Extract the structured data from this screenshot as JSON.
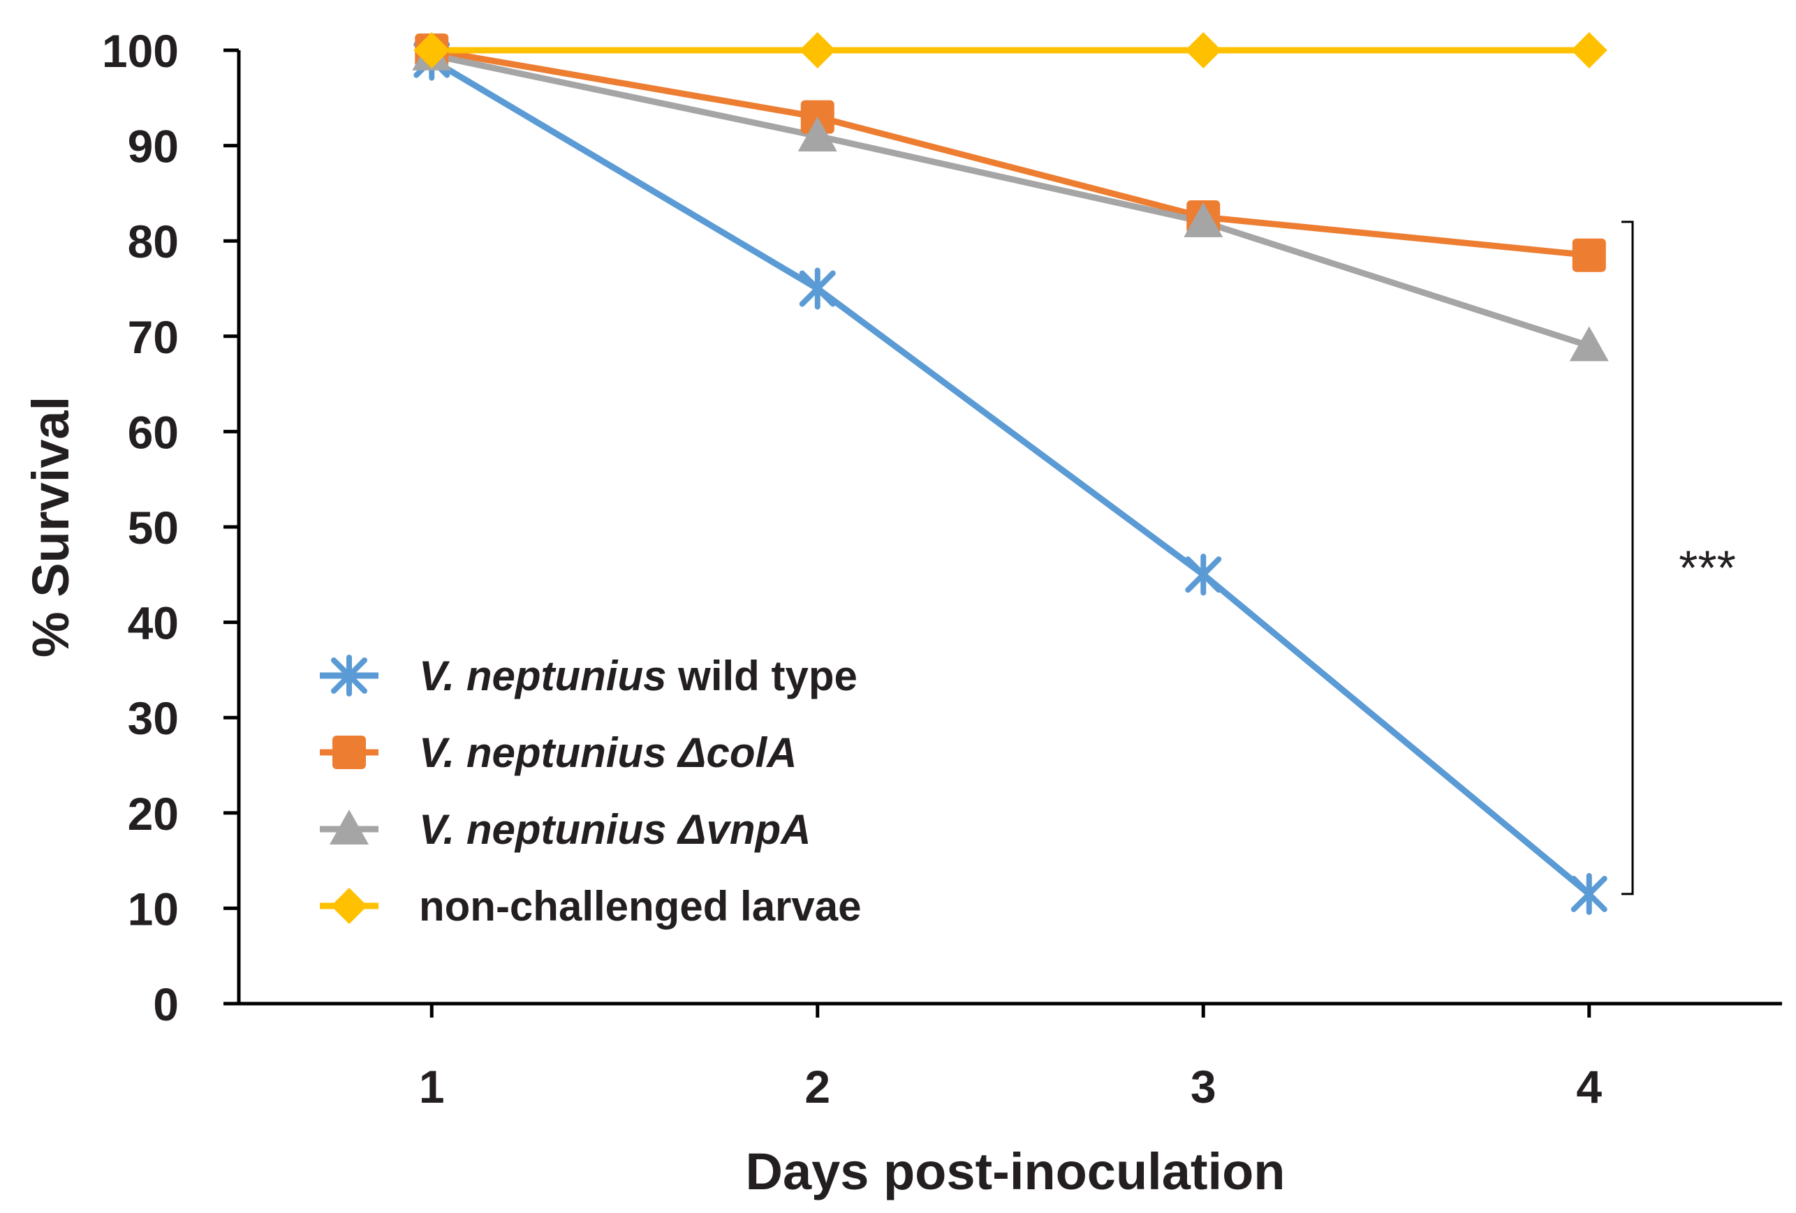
{
  "chart_data": {
    "type": "line",
    "title": "",
    "xlabel": "Days post-inoculation",
    "ylabel": "% Survival",
    "x": [
      1,
      2,
      3,
      4
    ],
    "xlim": [
      0.5,
      4.5
    ],
    "ylim": [
      0,
      100
    ],
    "yticks": [
      0,
      10,
      20,
      30,
      40,
      50,
      60,
      70,
      80,
      90,
      100
    ],
    "xticks": [
      1,
      2,
      3,
      4
    ],
    "grid": false,
    "legend_position": "bottom-left",
    "series": [
      {
        "name": "V. neptunius wild type",
        "italic": "V. neptunius",
        "rest": "wild type",
        "marker": "x",
        "color": "#5b9bd5",
        "values": [
          99,
          75,
          45,
          11.5
        ]
      },
      {
        "name": "V. neptunius ΔcolA",
        "italic": "V. neptunius",
        "rest": "ΔcolA",
        "rest_italic": true,
        "marker": "square",
        "color": "#ed7d31",
        "values": [
          100,
          93,
          82.5,
          78.5
        ]
      },
      {
        "name": "V. neptunius ΔvnpA",
        "italic": "V. neptunius",
        "rest": "ΔvnpA",
        "rest_italic": true,
        "marker": "triangle",
        "color": "#a5a5a5",
        "values": [
          99.5,
          91,
          82,
          69
        ]
      },
      {
        "name": "non-challenged larvae",
        "italic": "",
        "rest": "non-challenged larvae",
        "marker": "diamond",
        "color": "#ffc000",
        "values": [
          100,
          100,
          100,
          100
        ]
      }
    ],
    "annotation": {
      "text": "***",
      "spans": [
        11.5,
        82
      ]
    }
  }
}
